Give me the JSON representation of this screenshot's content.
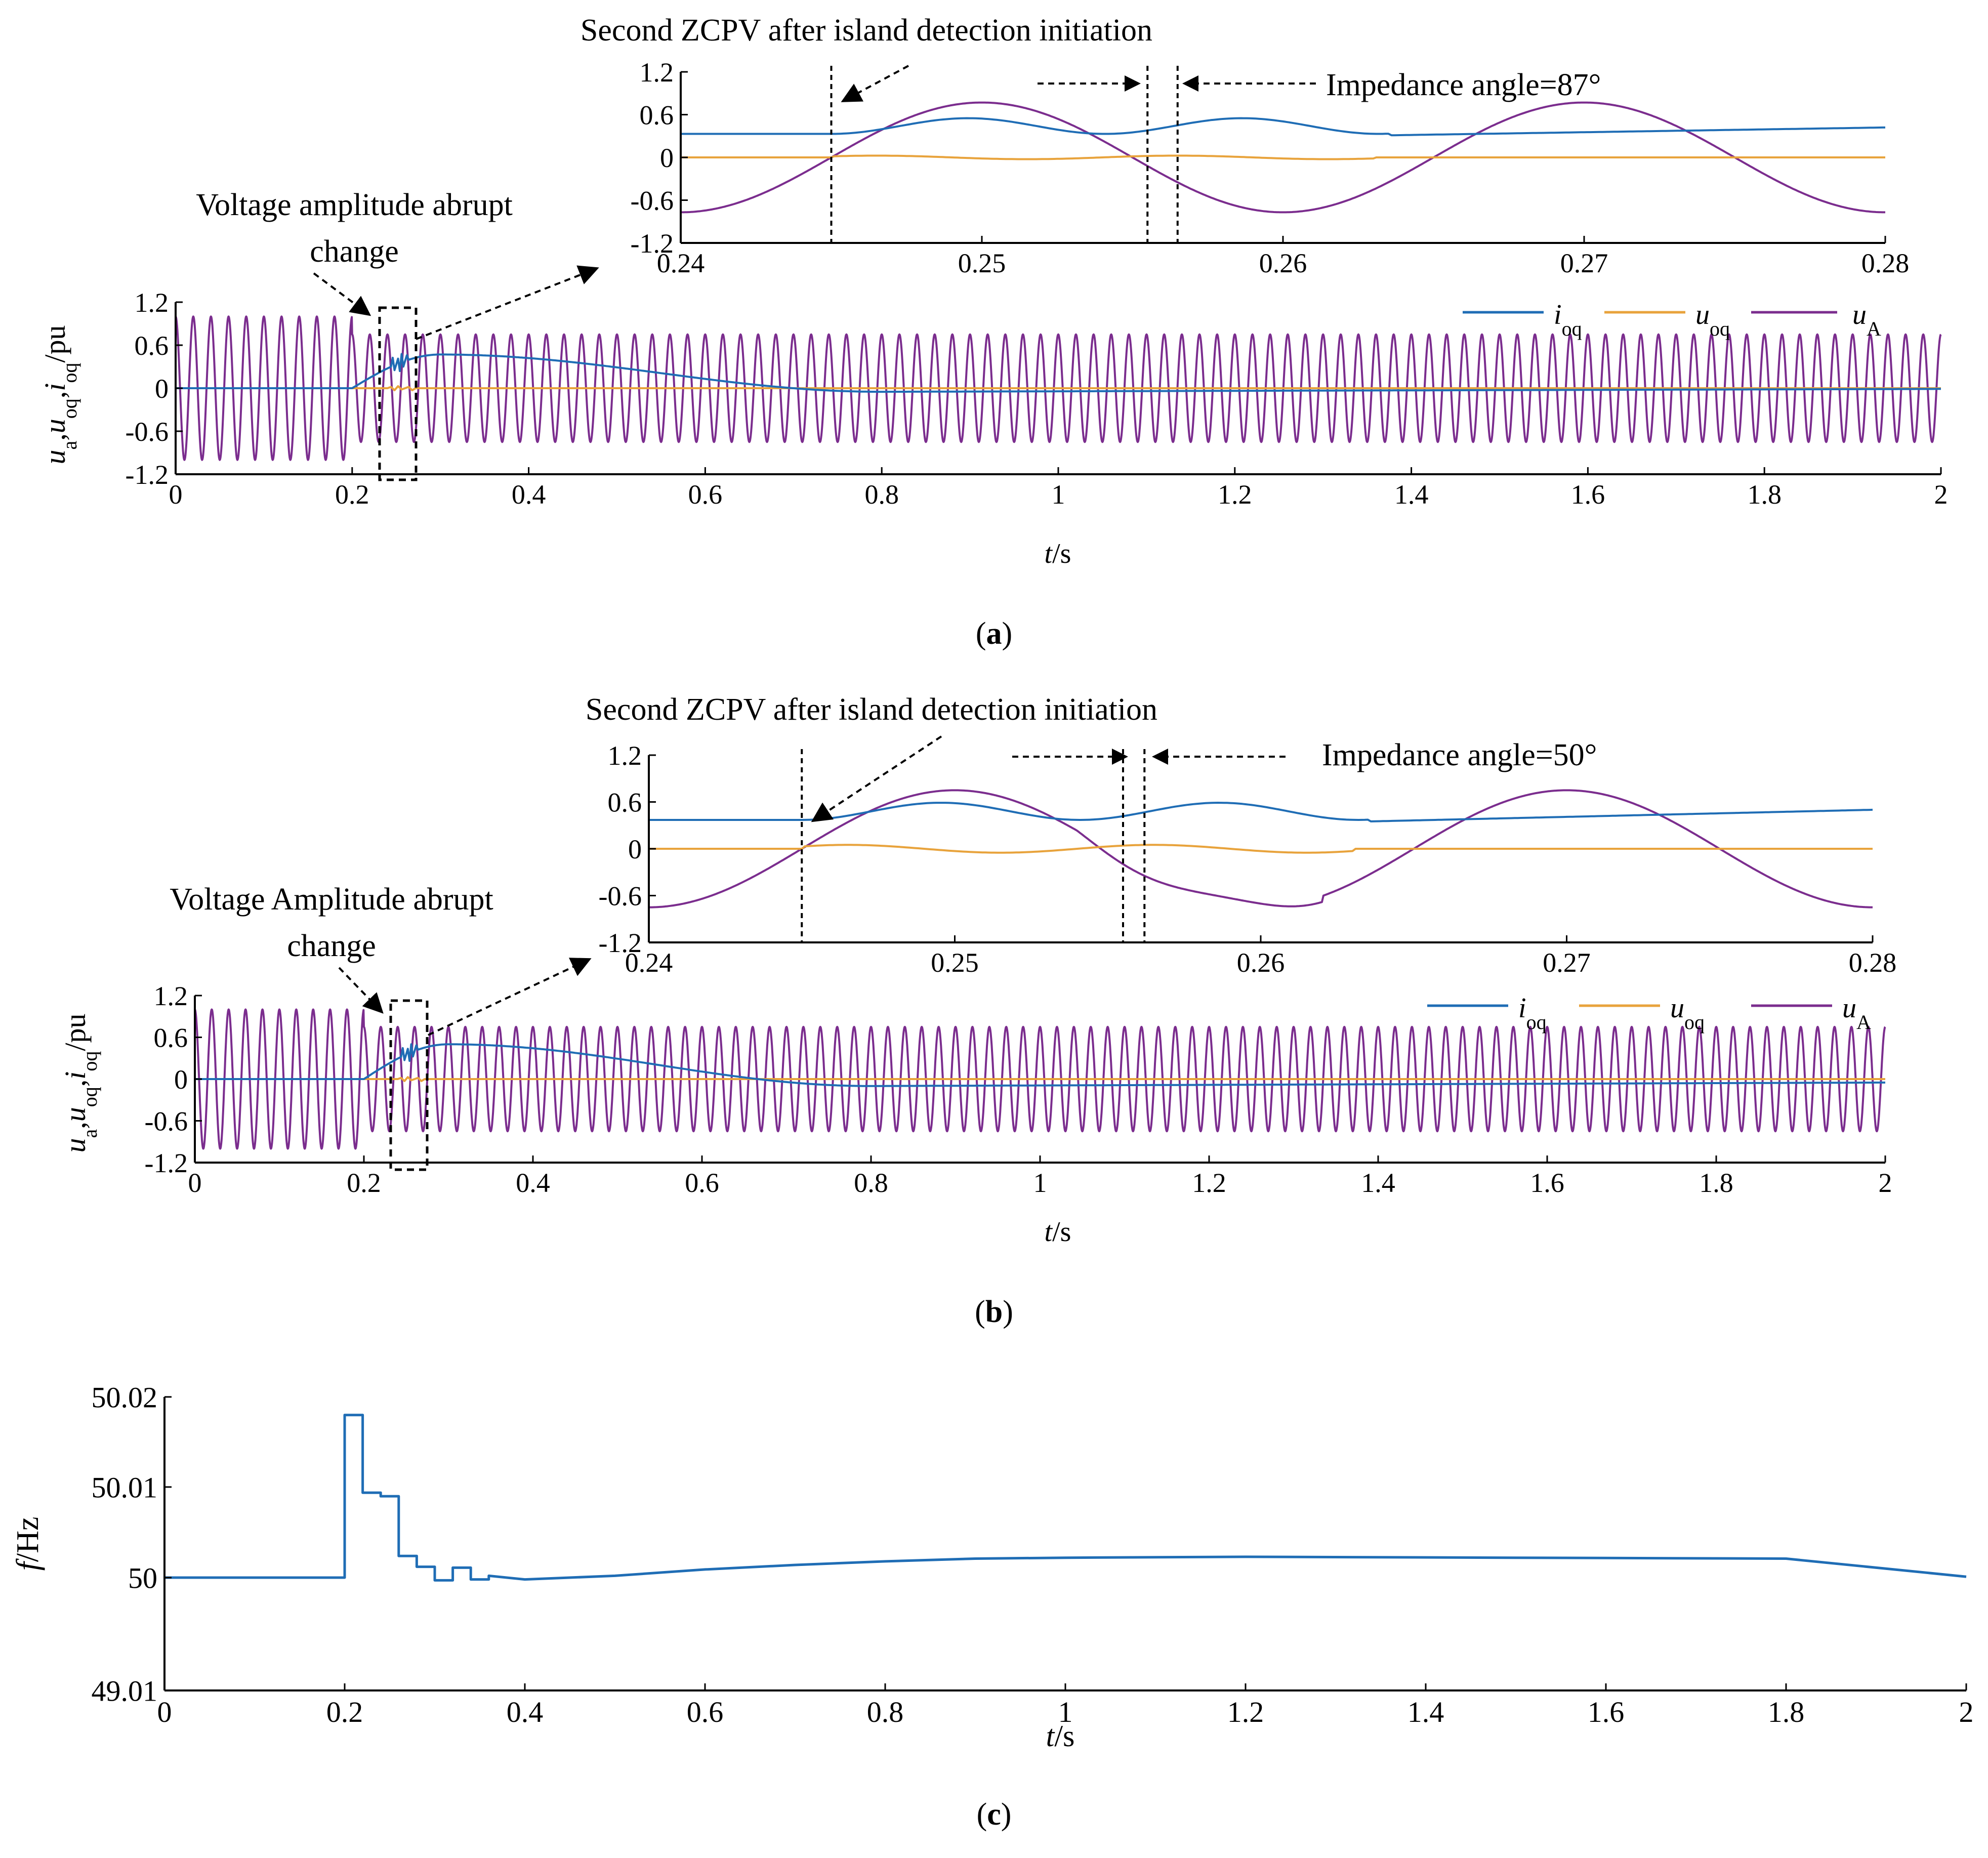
{
  "colors": {
    "i_oq": "#1f6db5",
    "u_oq": "#e8a33c",
    "u_A": "#7b2d8e",
    "axis": "#000000"
  },
  "chart_data": [
    {
      "id": "a",
      "panel_label": "a",
      "type": "line",
      "xlabel": {
        "var": "t",
        "unit": "/s"
      },
      "ylabel": {
        "u1": "u",
        "s1": "a",
        "u2": "u",
        "s2": "oq",
        "u3": "i",
        "s3": "oq",
        "unit": "/pu"
      },
      "xlim": [
        0,
        2
      ],
      "ylim": [
        -1.2,
        1.2
      ],
      "xticks": [
        "0",
        "0.2",
        "0.4",
        "0.6",
        "0.8",
        "1",
        "1.2",
        "1.4",
        "1.6",
        "1.8",
        "2"
      ],
      "yticks": [
        "1.2",
        "0.6",
        "0",
        "-0.6",
        "-1.2"
      ],
      "legend": [
        {
          "var": "i",
          "sub": "oq",
          "key": "i_oq"
        },
        {
          "var": "u",
          "sub": "oq",
          "key": "u_oq"
        },
        {
          "var": "u",
          "sub": "A",
          "key": "u_A"
        }
      ],
      "annotations": {
        "abrupt_1": "Voltage amplitude abrupt",
        "abrupt_2": "change"
      },
      "series": [
        {
          "name": "i_oq",
          "description": "0 until 0.2 s, rises to about 0.47 at 0.3 s, decays to about -0.05 by 0.8 s, recovers toward 0 at 2 s"
        },
        {
          "name": "u_oq",
          "description": "approximately 0 throughout"
        },
        {
          "name": "u_A",
          "description": "50 Hz sinusoid, amplitude 1.0 for t < 0.2 s, 0.75 afterwards"
        }
      ],
      "inset": {
        "title": "Second ZCPV after island detection initiation",
        "angle_label": "Impedance angle=87°",
        "xlim": [
          0.24,
          0.28
        ],
        "ylim": [
          -1.2,
          1.2
        ],
        "xticks": [
          "0.24",
          "0.25",
          "0.26",
          "0.27",
          "0.28"
        ],
        "yticks": [
          "1.2",
          "0.6",
          "0",
          "-0.6",
          "-1.2"
        ],
        "markers": [
          0.245,
          0.2555,
          0.2565
        ],
        "series": [
          {
            "name": "i_oq",
            "description": "about 0.33 with oscillation up to 0.55 between 0.245 s and 0.263 s, then rises slowly to 0.42"
          },
          {
            "name": "u_oq",
            "description": "about 0 with small ripple"
          },
          {
            "name": "u_A",
            "description": "50 Hz sinusoid amplitude 0.77, zero crossing at 0.245 s"
          }
        ]
      }
    },
    {
      "id": "b",
      "panel_label": "b",
      "type": "line",
      "xlabel": {
        "var": "t",
        "unit": "/s"
      },
      "ylabel": {
        "u1": "u",
        "s1": "a",
        "u2": "u",
        "s2": "oq",
        "u3": "i",
        "s3": "oq",
        "unit": "/pu"
      },
      "xlim": [
        0,
        2
      ],
      "ylim": [
        -1.2,
        1.2
      ],
      "xticks": [
        "0",
        "0.2",
        "0.4",
        "0.6",
        "0.8",
        "1",
        "1.2",
        "1.4",
        "1.6",
        "1.8",
        "2"
      ],
      "yticks": [
        "1.2",
        "0.6",
        "0",
        "-0.6",
        "-1.2"
      ],
      "legend": [
        {
          "var": "i",
          "sub": "oq",
          "key": "i_oq"
        },
        {
          "var": "u",
          "sub": "oq",
          "key": "u_oq"
        },
        {
          "var": "u",
          "sub": "A",
          "key": "u_A"
        }
      ],
      "annotations": {
        "abrupt_1": "Voltage Amplitude abrupt",
        "abrupt_2": "change"
      },
      "series": [
        {
          "name": "i_oq",
          "description": "0 until 0.2 s, rises to about 0.5 at 0.3 s, decays to about -0.1 by 0.8 s, recovers toward -0.05 at 2 s"
        },
        {
          "name": "u_oq",
          "description": "approximately 0 throughout"
        },
        {
          "name": "u_A",
          "description": "50 Hz sinusoid, amplitude 1.0 for t < 0.2 s, 0.75 afterwards"
        }
      ],
      "inset": {
        "title": "Second ZCPV after island detection initiation",
        "angle_label": "Impedance angle=50°",
        "xlim": [
          0.24,
          0.28
        ],
        "ylim": [
          -1.2,
          1.2
        ],
        "xticks": [
          "0.24",
          "0.25",
          "0.26",
          "0.27",
          "0.28"
        ],
        "yticks": [
          "1.2",
          "0.6",
          "0",
          "-0.6",
          "-1.2"
        ],
        "markers": [
          0.245,
          0.2555,
          0.2562
        ],
        "series": [
          {
            "name": "i_oq",
            "description": "about 0.37 with oscillation up to 0.55 between 0.245 s and 0.263 s, then rises slowly to 0.5"
          },
          {
            "name": "u_oq",
            "description": "about 0 with ripple of about 0.05"
          },
          {
            "name": "u_A",
            "description": "50 Hz sinusoid amplitude 0.75, zero crossing at 0.245 s"
          }
        ]
      }
    },
    {
      "id": "c",
      "panel_label": "c",
      "type": "line",
      "xlabel": {
        "var": "t",
        "unit": "/s"
      },
      "ylabel": {
        "var": "f",
        "unit": "/Hz"
      },
      "xlim": [
        0,
        2
      ],
      "ylim": [
        49.01,
        50.02
      ],
      "xticks": [
        "0",
        "0.2",
        "0.4",
        "0.6",
        "0.8",
        "1",
        "1.2",
        "1.4",
        "1.6",
        "1.8",
        "2"
      ],
      "yticks": [
        "50.02",
        "50.01",
        "50",
        "49.01"
      ],
      "series": [
        {
          "name": "f",
          "points": [
            [
              0,
              50
            ],
            [
              0.2,
              50
            ],
            [
              0.2,
              50.018
            ],
            [
              0.22,
              50.018
            ],
            [
              0.22,
              50.0094
            ],
            [
              0.24,
              50.0094
            ],
            [
              0.24,
              50.009
            ],
            [
              0.26,
              50.009
            ],
            [
              0.26,
              50.0024
            ],
            [
              0.28,
              50.0024
            ],
            [
              0.28,
              50.0012
            ],
            [
              0.3,
              50.0012
            ],
            [
              0.3,
              49.9997
            ],
            [
              0.32,
              49.9997
            ],
            [
              0.32,
              50.0011
            ],
            [
              0.34,
              50.0011
            ],
            [
              0.34,
              49.9998
            ],
            [
              0.36,
              49.9998
            ],
            [
              0.36,
              50.0002
            ],
            [
              0.4,
              49.9998
            ],
            [
              0.5,
              50.0002
            ],
            [
              0.6,
              50.0009
            ],
            [
              0.7,
              50.0014
            ],
            [
              0.8,
              50.0018
            ],
            [
              0.9,
              50.0021
            ],
            [
              1.0,
              50.0022
            ],
            [
              1.2,
              50.0023
            ],
            [
              1.5,
              50.0022
            ],
            [
              1.8,
              50.0021
            ],
            [
              2.0,
              50.0001
            ]
          ]
        }
      ]
    }
  ]
}
